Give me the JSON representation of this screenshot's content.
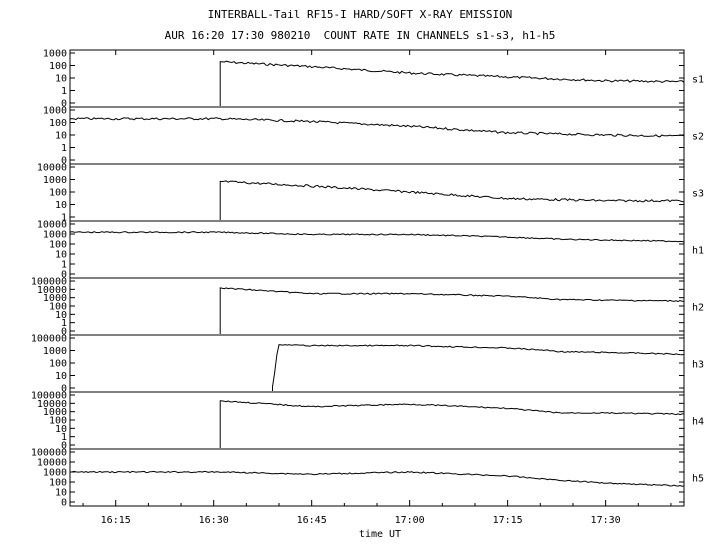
{
  "page": {
    "title": "INTERBALL-Tail RF15-I HARD/SOFT X-RAY EMISSION",
    "subtitle": "AUR 16:20 17:30 980210  COUNT RATE IN CHANNELS s1-s3, h1-h5"
  },
  "chart_data": {
    "type": "line",
    "xlabel": "time UT",
    "x_ticks": [
      "16:15",
      "16:30",
      "16:45",
      "17:00",
      "17:15",
      "17:30"
    ],
    "x_range": [
      "16:08",
      "17:42"
    ],
    "y_scale": "log",
    "grid": false,
    "panels": [
      {
        "name": "s1",
        "y_ticks": [
          "1000",
          "100",
          "10",
          "1",
          "0"
        ],
        "series": [
          {
            "time": "16:31",
            "value": 200
          },
          {
            "time": "16:45",
            "value": 80
          },
          {
            "time": "17:00",
            "value": 25
          },
          {
            "time": "17:15",
            "value": 12
          },
          {
            "time": "17:30",
            "value": 6
          },
          {
            "time": "17:42",
            "value": 5
          }
        ]
      },
      {
        "name": "s2",
        "y_ticks": [
          "1000",
          "100",
          "10",
          "1",
          "0"
        ],
        "series": [
          {
            "time": "16:08",
            "value": 200
          },
          {
            "time": "16:31",
            "value": 200
          },
          {
            "time": "16:45",
            "value": 120
          },
          {
            "time": "17:00",
            "value": 50
          },
          {
            "time": "17:15",
            "value": 15
          },
          {
            "time": "17:30",
            "value": 10
          },
          {
            "time": "17:42",
            "value": 8
          }
        ]
      },
      {
        "name": "s3",
        "y_ticks": [
          "10000",
          "1000",
          "100",
          "10",
          "1"
        ],
        "series": [
          {
            "time": "16:31",
            "value": 700
          },
          {
            "time": "16:45",
            "value": 300
          },
          {
            "time": "17:00",
            "value": 100
          },
          {
            "time": "17:15",
            "value": 30
          },
          {
            "time": "17:30",
            "value": 20
          },
          {
            "time": "17:42",
            "value": 20
          }
        ]
      },
      {
        "name": "h1",
        "y_ticks": [
          "10000",
          "1000",
          "100",
          "10",
          "1",
          "0"
        ],
        "series": [
          {
            "time": "16:08",
            "value": 1500
          },
          {
            "time": "16:31",
            "value": 1500
          },
          {
            "time": "16:45",
            "value": 900
          },
          {
            "time": "17:00",
            "value": 900
          },
          {
            "time": "17:15",
            "value": 500
          },
          {
            "time": "17:23",
            "value": 300
          },
          {
            "time": "17:30",
            "value": 250
          },
          {
            "time": "17:42",
            "value": 180
          }
        ]
      },
      {
        "name": "h2",
        "y_ticks": [
          "100000",
          "10000",
          "1000",
          "100",
          "10",
          "1",
          "0"
        ],
        "series": [
          {
            "time": "16:31",
            "value": 15000
          },
          {
            "time": "16:45",
            "value": 3000
          },
          {
            "time": "17:00",
            "value": 3000
          },
          {
            "time": "17:15",
            "value": 1500
          },
          {
            "time": "17:23",
            "value": 600
          },
          {
            "time": "17:30",
            "value": 500
          },
          {
            "time": "17:42",
            "value": 400
          }
        ]
      },
      {
        "name": "h3",
        "y_ticks": [
          "100000",
          "1000",
          "100",
          "10",
          "0"
        ],
        "series": [
          {
            "time": "16:39",
            "value": 1
          },
          {
            "time": "16:40",
            "value": 8000
          },
          {
            "time": "16:45",
            "value": 6000
          },
          {
            "time": "17:00",
            "value": 6000
          },
          {
            "time": "17:15",
            "value": 2500
          },
          {
            "time": "17:23",
            "value": 800
          },
          {
            "time": "17:30",
            "value": 700
          },
          {
            "time": "17:42",
            "value": 500
          }
        ]
      },
      {
        "name": "h4",
        "y_ticks": [
          "100000",
          "10000",
          "1000",
          "100",
          "10",
          "1",
          "0"
        ],
        "series": [
          {
            "time": "16:31",
            "value": 20000
          },
          {
            "time": "16:45",
            "value": 4000
          },
          {
            "time": "17:00",
            "value": 8000
          },
          {
            "time": "17:15",
            "value": 2500
          },
          {
            "time": "17:23",
            "value": 700
          },
          {
            "time": "17:30",
            "value": 700
          },
          {
            "time": "17:42",
            "value": 500
          }
        ]
      },
      {
        "name": "h5",
        "y_ticks": [
          "100000",
          "10000",
          "1000",
          "100",
          "10",
          "0"
        ],
        "series": [
          {
            "time": "16:08",
            "value": 1000
          },
          {
            "time": "16:31",
            "value": 1000
          },
          {
            "time": "16:45",
            "value": 600
          },
          {
            "time": "17:00",
            "value": 1000
          },
          {
            "time": "17:15",
            "value": 400
          },
          {
            "time": "17:23",
            "value": 150
          },
          {
            "time": "17:30",
            "value": 80
          },
          {
            "time": "17:42",
            "value": 40
          }
        ]
      }
    ]
  }
}
